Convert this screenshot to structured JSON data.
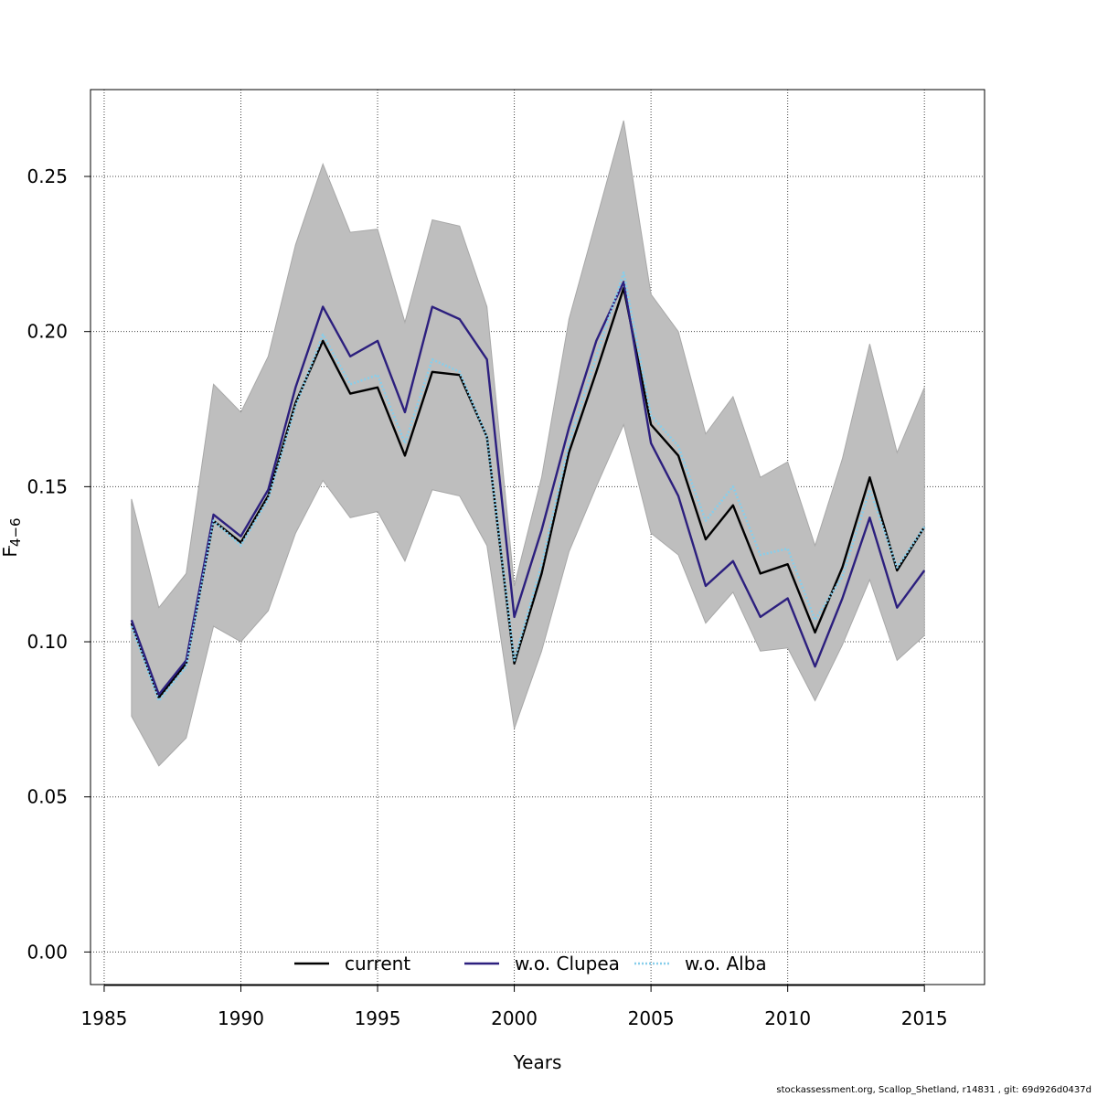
{
  "chart_data": {
    "type": "line",
    "title": "",
    "xlabel": "Years",
    "ylabel_main": "F",
    "ylabel_sub": "4−6",
    "xlim": [
      1984.5,
      2017.2
    ],
    "ylim": [
      -0.0105,
      0.278
    ],
    "xticks": [
      1985,
      1990,
      1995,
      2000,
      2005,
      2010,
      2015
    ],
    "xtick_labels": [
      "1985",
      "1990",
      "1995",
      "2000",
      "2005",
      "2010",
      "2015"
    ],
    "yticks": [
      0.0,
      0.05,
      0.1,
      0.15,
      0.2,
      0.25
    ],
    "ytick_labels": [
      "0.00",
      "0.05",
      "0.10",
      "0.15",
      "0.20",
      "0.25"
    ],
    "grid": true,
    "x": [
      1986,
      1987,
      1988,
      1989,
      1990,
      1991,
      1992,
      1993,
      1994,
      1995,
      1996,
      1997,
      1998,
      1999,
      2000,
      2001,
      2002,
      2003,
      2004,
      2005,
      2006,
      2007,
      2008,
      2009,
      2010,
      2011,
      2012,
      2013,
      2014,
      2015
    ],
    "band": {
      "name": "confidence interval",
      "color": "#bebebe",
      "upper": [
        0.146,
        0.111,
        0.122,
        0.183,
        0.174,
        0.192,
        0.228,
        0.254,
        0.232,
        0.233,
        0.203,
        0.236,
        0.234,
        0.208,
        0.118,
        0.153,
        0.204,
        0.236,
        0.268,
        0.212,
        0.2,
        0.167,
        0.179,
        0.153,
        0.158,
        0.131,
        0.159,
        0.196,
        0.161,
        0.182
      ],
      "lower": [
        0.076,
        0.06,
        0.069,
        0.105,
        0.1,
        0.11,
        0.135,
        0.152,
        0.14,
        0.142,
        0.126,
        0.149,
        0.147,
        0.131,
        0.072,
        0.097,
        0.129,
        0.15,
        0.17,
        0.135,
        0.128,
        0.106,
        0.116,
        0.097,
        0.098,
        0.081,
        0.099,
        0.12,
        0.094,
        0.102
      ]
    },
    "series": [
      {
        "name": "current",
        "color": "#000000",
        "style": "solid",
        "values": [
          0.106,
          0.082,
          0.093,
          0.139,
          0.132,
          0.147,
          0.177,
          0.197,
          0.18,
          0.182,
          0.16,
          0.187,
          0.186,
          0.166,
          0.093,
          0.122,
          0.161,
          0.187,
          0.214,
          0.17,
          0.16,
          0.133,
          0.144,
          0.122,
          0.125,
          0.103,
          0.124,
          0.153,
          0.123,
          0.137
        ]
      },
      {
        "name": "w.o. Clupea",
        "color": "#2c1f7e",
        "style": "solid",
        "values": [
          0.107,
          0.083,
          0.094,
          0.141,
          0.134,
          0.149,
          0.182,
          0.208,
          0.192,
          0.197,
          0.174,
          0.208,
          0.204,
          0.191,
          0.108,
          0.136,
          0.169,
          0.197,
          0.216,
          0.164,
          0.147,
          0.118,
          0.126,
          0.108,
          0.114,
          0.092,
          0.114,
          0.14,
          0.111,
          0.123
        ]
      },
      {
        "name": "w.o. Alba",
        "color": "#87ceeb",
        "style": "dotted",
        "values": [
          0.105,
          0.081,
          0.092,
          0.139,
          0.131,
          0.146,
          0.176,
          0.199,
          0.183,
          0.186,
          0.164,
          0.191,
          0.187,
          0.166,
          0.094,
          0.125,
          0.164,
          0.192,
          0.219,
          0.173,
          0.163,
          0.139,
          0.15,
          0.128,
          0.13,
          0.107,
          0.121,
          0.149,
          0.124,
          0.137
        ]
      }
    ],
    "legend": {
      "placement": "bottom-center",
      "entries": [
        "current",
        "w.o. Clupea",
        "w.o. Alba"
      ]
    }
  },
  "footer_text": "stockassessment.org, Scallop_Shetland, r14831 , git: 69d926d0437d"
}
